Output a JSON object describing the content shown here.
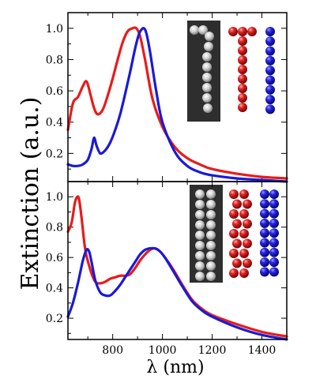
{
  "chart_data": [
    {
      "type": "line",
      "panel": "top",
      "xlabel": "λ (nm)",
      "ylabel": "Extinction (a.u.)",
      "xlim": [
        620,
        1500
      ],
      "ylim": [
        0.02,
        1.1
      ],
      "yticks": [
        0.2,
        0.4,
        0.6,
        0.8,
        1.0
      ],
      "ytick_labels": [
        "0.2",
        "0.4",
        "0.6",
        "0.8",
        "1.0"
      ],
      "colors": {
        "red": "#e81b1b",
        "blue": "#1a1ad6"
      },
      "series": [
        {
          "color": "red",
          "x": [
            620,
            640,
            660,
            680,
            695,
            710,
            725,
            740,
            760,
            780,
            800,
            820,
            840,
            860,
            880,
            895,
            910,
            930,
            960,
            1000,
            1050,
            1100,
            1150,
            1200,
            1300,
            1400,
            1500
          ],
          "y": [
            0.35,
            0.52,
            0.56,
            0.63,
            0.66,
            0.58,
            0.49,
            0.45,
            0.48,
            0.57,
            0.68,
            0.8,
            0.91,
            0.98,
            1.0,
            1.0,
            0.95,
            0.8,
            0.55,
            0.37,
            0.24,
            0.17,
            0.13,
            0.1,
            0.07,
            0.05,
            0.04
          ]
        },
        {
          "color": "blue",
          "x": [
            620,
            640,
            660,
            680,
            700,
            715,
            725,
            735,
            750,
            770,
            790,
            810,
            830,
            850,
            870,
            890,
            905,
            915,
            925,
            935,
            950,
            975,
            1000,
            1050,
            1100,
            1150,
            1200,
            1300,
            1400,
            1500
          ],
          "y": [
            0.13,
            0.12,
            0.12,
            0.13,
            0.16,
            0.23,
            0.3,
            0.25,
            0.2,
            0.22,
            0.27,
            0.35,
            0.45,
            0.58,
            0.72,
            0.87,
            0.96,
            0.99,
            1.0,
            0.97,
            0.85,
            0.6,
            0.4,
            0.21,
            0.12,
            0.08,
            0.06,
            0.04,
            0.03,
            0.02
          ]
        }
      ]
    },
    {
      "type": "line",
      "panel": "bottom",
      "xlabel": "λ (nm)",
      "ylabel": "Extinction (a.u.)",
      "xlim": [
        620,
        1500
      ],
      "ylim": [
        0.06,
        1.1
      ],
      "xticks": [
        800,
        1000,
        1200,
        1400
      ],
      "xtick_labels": [
        "800",
        "1000",
        "1200",
        "1400"
      ],
      "yticks": [
        0.2,
        0.4,
        0.6,
        0.8,
        1.0
      ],
      "ytick_labels": [
        "0.2",
        "0.4",
        "0.6",
        "0.8",
        "1.0"
      ],
      "colors": {
        "red": "#e81b1b",
        "blue": "#1a1ad6"
      },
      "series": [
        {
          "color": "red",
          "x": [
            620,
            635,
            648,
            658,
            665,
            675,
            690,
            710,
            730,
            750,
            770,
            790,
            810,
            830,
            850,
            870,
            890,
            910,
            930,
            950,
            970,
            990,
            1010,
            1040,
            1080,
            1120,
            1160,
            1200,
            1300,
            1400,
            1500
          ],
          "y": [
            0.77,
            0.83,
            0.96,
            1.0,
            0.98,
            0.86,
            0.65,
            0.52,
            0.44,
            0.43,
            0.44,
            0.46,
            0.47,
            0.48,
            0.48,
            0.49,
            0.53,
            0.58,
            0.62,
            0.65,
            0.66,
            0.64,
            0.6,
            0.53,
            0.42,
            0.32,
            0.26,
            0.22,
            0.16,
            0.11,
            0.08
          ]
        },
        {
          "color": "blue",
          "x": [
            620,
            640,
            660,
            680,
            695,
            705,
            715,
            730,
            750,
            770,
            790,
            810,
            830,
            850,
            870,
            890,
            910,
            930,
            950,
            970,
            990,
            1010,
            1040,
            1080,
            1120,
            1160,
            1200,
            1300,
            1400,
            1500
          ],
          "y": [
            0.21,
            0.3,
            0.43,
            0.58,
            0.65,
            0.64,
            0.57,
            0.45,
            0.37,
            0.35,
            0.35,
            0.38,
            0.42,
            0.47,
            0.52,
            0.57,
            0.62,
            0.65,
            0.66,
            0.66,
            0.64,
            0.6,
            0.52,
            0.41,
            0.31,
            0.25,
            0.21,
            0.14,
            0.09,
            0.06
          ]
        }
      ]
    }
  ]
}
